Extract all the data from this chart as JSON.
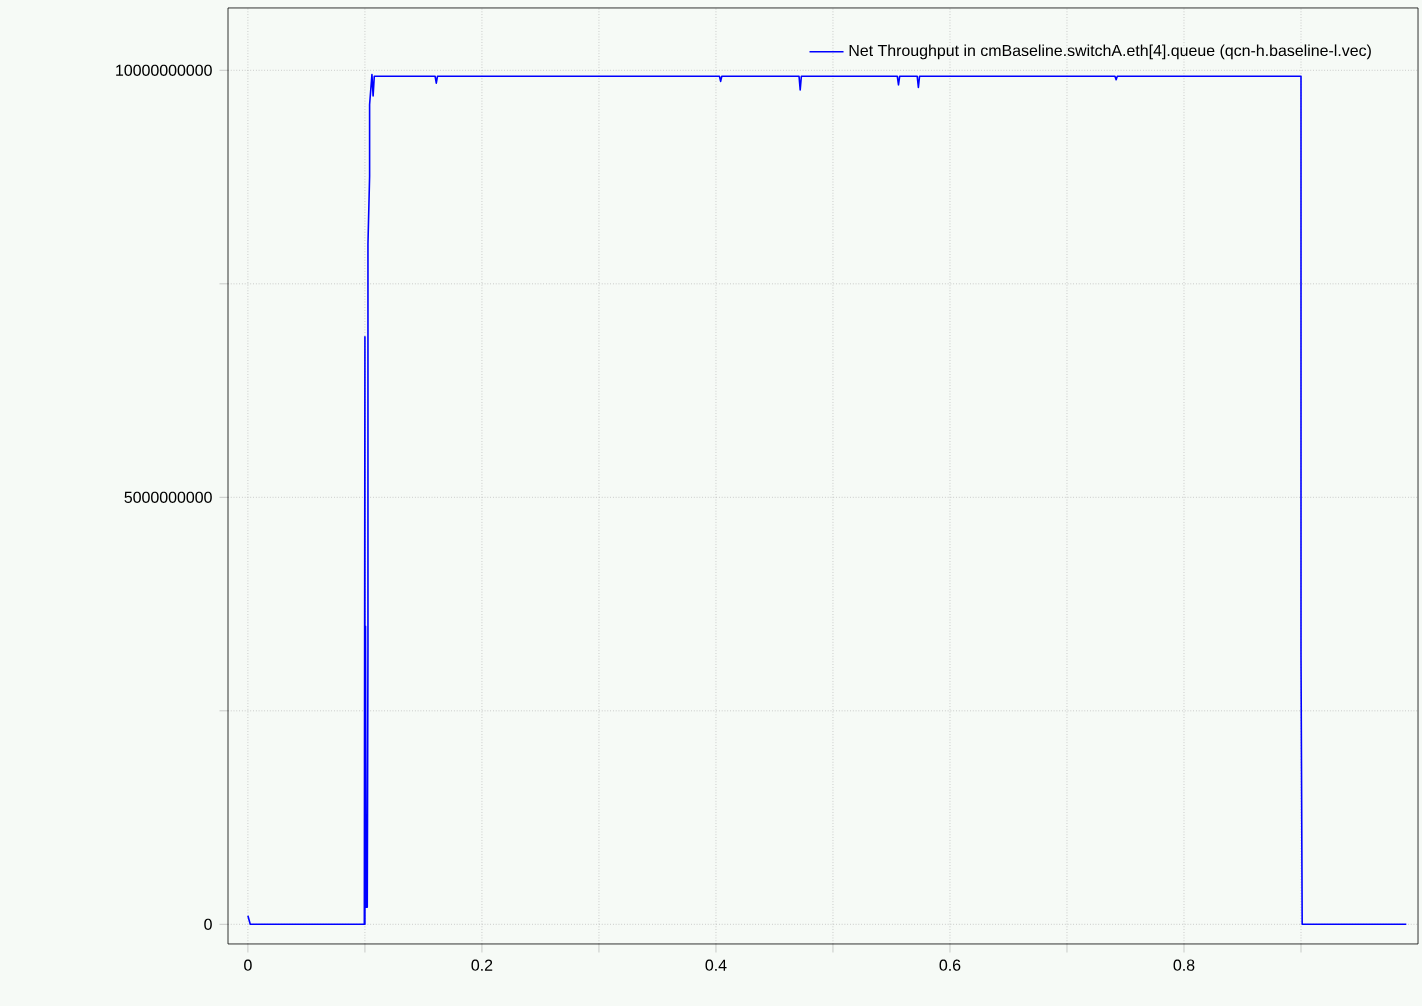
{
  "chart_data": {
    "type": "line",
    "series": [
      {
        "name": "Net Throughput in cmBaseline.switchA.eth[4].queue (qcn-h.baseline-l.vec)",
        "color": "#0000ff",
        "x": [
          0,
          0.002,
          0.0995,
          0.1,
          0.1,
          0.1005,
          0.101,
          0.102,
          0.1026,
          0.1026,
          0.104,
          0.104,
          0.106,
          0.107,
          0.108,
          0.16,
          0.161,
          0.162,
          0.403,
          0.404,
          0.405,
          0.471,
          0.472,
          0.473,
          0.555,
          0.556,
          0.557,
          0.572,
          0.573,
          0.574,
          0.741,
          0.742,
          0.743,
          0.9,
          0.9,
          0.901,
          0.99
        ],
        "values": [
          100000000,
          0,
          0,
          6880000000,
          0,
          3490000000,
          200000000,
          200000000,
          3250000000,
          7970000000,
          8760000000,
          9600000000,
          9950000000,
          9700000000,
          9930000000,
          9930000000,
          9850000000,
          9930000000,
          9930000000,
          9870000000,
          9930000000,
          9930000000,
          9770000000,
          9930000000,
          9930000000,
          9830000000,
          9930000000,
          9930000000,
          9800000000,
          9930000000,
          9930000000,
          9890000000,
          9930000000,
          9930000000,
          3160000000,
          0,
          0
        ]
      }
    ],
    "xlim": [
      -0.017,
      1.0
    ],
    "ylim": [
      -230000000,
      10730000000
    ],
    "xticks": [
      0,
      {
        "value": 0.1,
        "label": null
      },
      0.2,
      {
        "value": 0.3,
        "label": null
      },
      0.4,
      {
        "value": 0.5,
        "label": null
      },
      0.6,
      {
        "value": 0.7,
        "label": null
      },
      0.8,
      {
        "value": 0.9,
        "label": null
      }
    ],
    "yticks": [
      0,
      {
        "value": 2500000000,
        "label": null
      },
      5000000000,
      {
        "value": 7500000000,
        "label": null
      },
      10000000000
    ],
    "grid": true,
    "legend": "top right",
    "marker": "none",
    "line_style": "solid"
  }
}
